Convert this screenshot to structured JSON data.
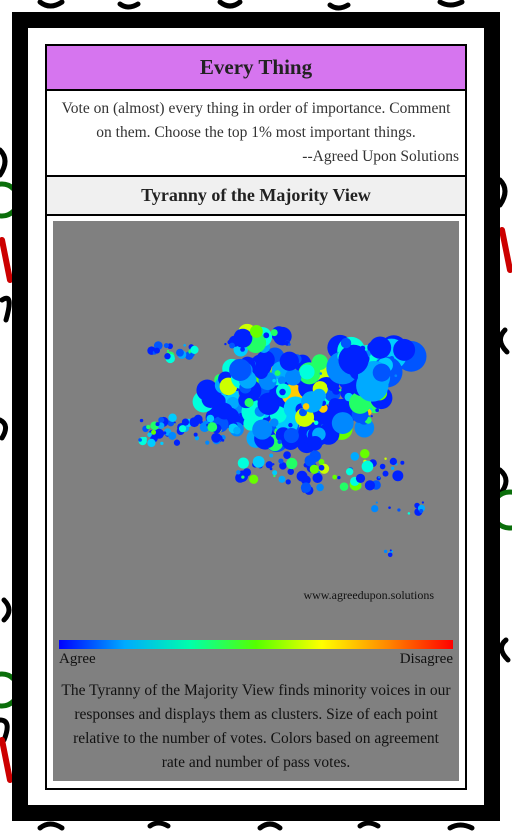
{
  "header": {
    "title": "Every Thing"
  },
  "description": {
    "text": "Vote on (almost) every thing in order of importance. Comment on them. Choose the top 1% most important things.",
    "attribution": "--Agreed Upon Solutions"
  },
  "view": {
    "title": "Tyranny of the Majority View",
    "watermark": "www.agreedupon.solutions",
    "scale": {
      "low": "Agree",
      "high": "Disagree"
    },
    "caption": "The Tyranny of the Majority View finds minority voices in our responses and displays them as clusters. Size of each point relative to the number of votes. Colors based on agreement rate and number of pass votes."
  }
}
